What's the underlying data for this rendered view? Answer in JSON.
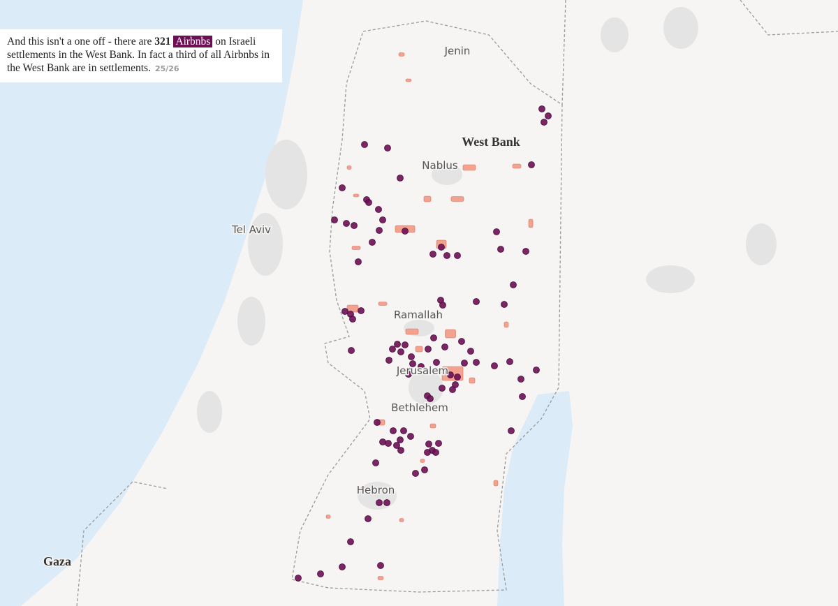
{
  "caption": {
    "text_before": "And this isn't a one off - there are ",
    "count": 321,
    "highlight": "Airbnbs",
    "text_after": " on Israeli settlements in the West Bank. In fact a third of all Airbnbs in the West Bank are in settlements.",
    "step": "25/26"
  },
  "labels": {
    "jenin": "Jenin",
    "west_bank": "West Bank",
    "nablus": "Nablus",
    "tel_aviv": "Tel Aviv",
    "ramallah": "Ramallah",
    "jerusalem": "Jerusalem",
    "bethlehem": "Bethlehem",
    "hebron": "Hebron",
    "gaza": "Gaza"
  }
}
